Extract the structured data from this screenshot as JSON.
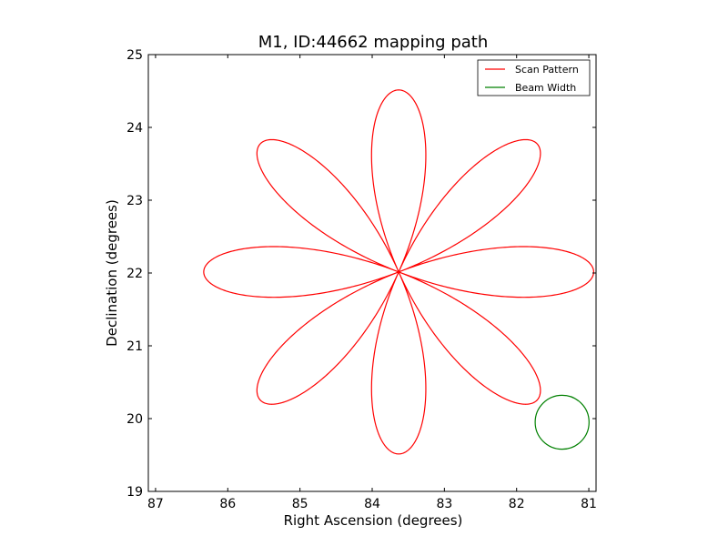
{
  "chart_data": {
    "type": "line",
    "title": "M1, ID:44662 mapping path",
    "xlabel": "Right Ascension (degrees)",
    "ylabel": "Declination (degrees)",
    "xlim": [
      87.1,
      80.9
    ],
    "ylim": [
      19,
      25
    ],
    "x_ticks": [
      87,
      86,
      85,
      84,
      83,
      82,
      81
    ],
    "y_ticks": [
      19,
      20,
      21,
      22,
      23,
      24,
      25
    ],
    "x_tick_labels": [
      "87",
      "86",
      "85",
      "84",
      "83",
      "82",
      "81"
    ],
    "y_tick_labels": [
      "19",
      "20",
      "21",
      "22",
      "23",
      "24",
      "25"
    ],
    "grid": false,
    "legend_position": "top-right",
    "series": [
      {
        "name": "Scan Pattern",
        "color": "#ff0000",
        "kind": "rose",
        "center": [
          83.633,
          22.0145
        ],
        "petals": 8,
        "petal_radius_deg": 2.5,
        "petal_ra_extent_deg": 2.7,
        "petal_half_width_deg": 0.36
      },
      {
        "name": "Beam Width",
        "color": "#008000",
        "kind": "circle",
        "center": [
          81.37,
          19.95
        ],
        "radius_dec_deg": 0.37
      }
    ]
  }
}
